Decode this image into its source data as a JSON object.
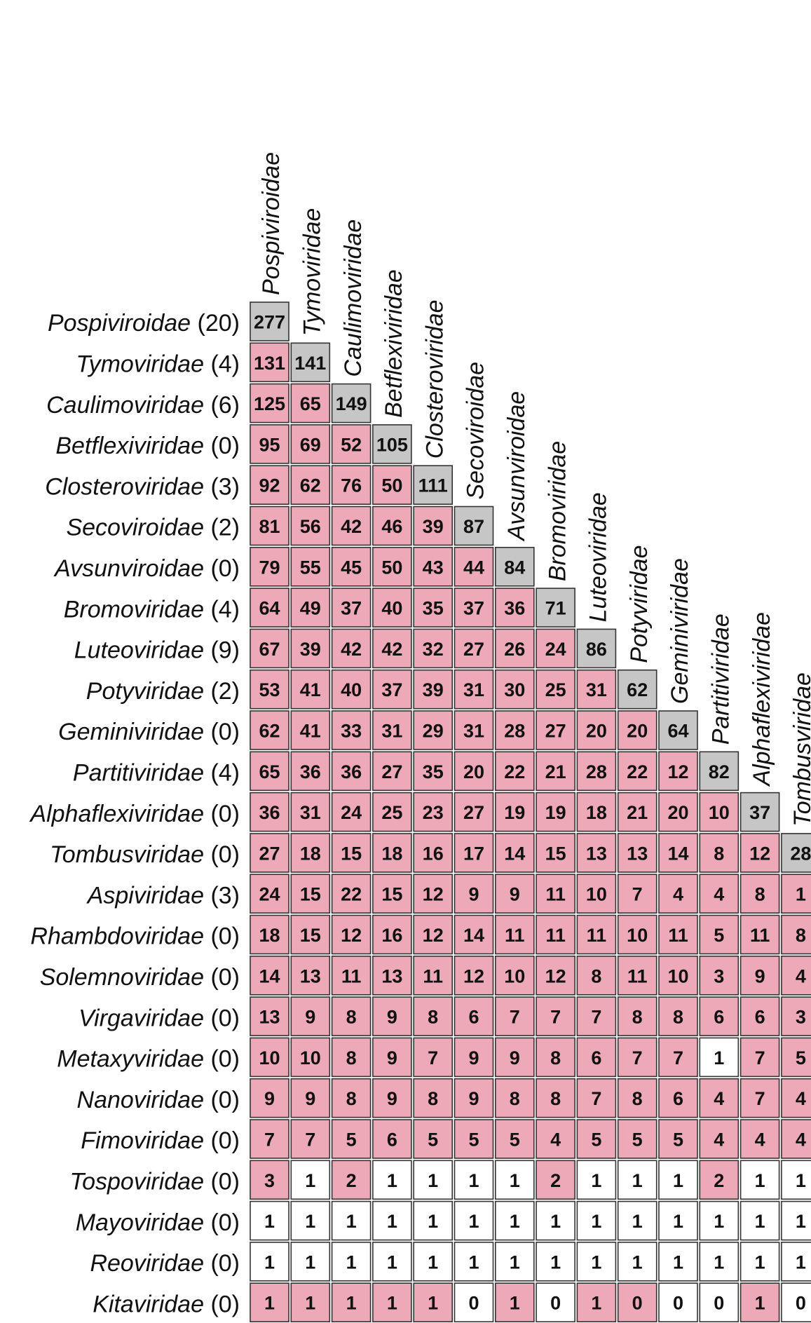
{
  "chart_data": {
    "type": "heatmap",
    "colors": {
      "diagonal": "#c6c6c6",
      "shared": "#eea9b8",
      "other": "#ffffff",
      "grid": "#333333"
    },
    "rows": [
      {
        "name": "Pospiviroidae",
        "count": "(20)",
        "values": [
          277
        ]
      },
      {
        "name": "Tymoviridae",
        "count": "(4)",
        "values": [
          131,
          141
        ]
      },
      {
        "name": "Caulimoviridae",
        "count": "(6)",
        "values": [
          125,
          65,
          149
        ]
      },
      {
        "name": "Betflexiviridae",
        "count": "(0)",
        "values": [
          95,
          69,
          52,
          105
        ]
      },
      {
        "name": "Closteroviridae",
        "count": "(3)",
        "values": [
          92,
          62,
          76,
          50,
          111
        ]
      },
      {
        "name": "Secoviroidae",
        "count": "(2)",
        "values": [
          81,
          56,
          42,
          46,
          39,
          87
        ]
      },
      {
        "name": "Avsunviroidae",
        "count": "(0)",
        "values": [
          79,
          55,
          45,
          50,
          43,
          44,
          84
        ]
      },
      {
        "name": "Bromoviridae",
        "count": "(4)",
        "values": [
          64,
          49,
          37,
          40,
          35,
          37,
          36,
          71
        ]
      },
      {
        "name": "Luteoviridae",
        "count": "(9)",
        "values": [
          67,
          39,
          42,
          42,
          32,
          27,
          26,
          24,
          86
        ]
      },
      {
        "name": "Potyviridae",
        "count": "(2)",
        "values": [
          53,
          41,
          40,
          37,
          39,
          31,
          30,
          25,
          31,
          62
        ]
      },
      {
        "name": "Geminiviridae",
        "count": "(0)",
        "values": [
          62,
          41,
          33,
          31,
          29,
          31,
          28,
          27,
          20,
          20,
          64
        ]
      },
      {
        "name": "Partitiviridae",
        "count": "(4)",
        "values": [
          65,
          36,
          36,
          27,
          35,
          20,
          22,
          21,
          28,
          22,
          12,
          82
        ]
      },
      {
        "name": "Alphaflexiviridae",
        "count": "(0)",
        "values": [
          36,
          31,
          24,
          25,
          23,
          27,
          19,
          19,
          18,
          21,
          20,
          10,
          37
        ]
      },
      {
        "name": "Tombusviridae",
        "count": "(0)",
        "values": [
          27,
          18,
          15,
          18,
          16,
          17,
          14,
          15,
          13,
          13,
          14,
          8,
          12,
          28
        ]
      },
      {
        "name": "Aspiviridae",
        "count": "(3)",
        "values": [
          24,
          15,
          22,
          15,
          12,
          9,
          9,
          11,
          10,
          7,
          4,
          4,
          8,
          1
        ]
      },
      {
        "name": "Rhambdoviridae",
        "count": "(0)",
        "values": [
          18,
          15,
          12,
          16,
          12,
          14,
          11,
          11,
          11,
          10,
          11,
          5,
          11,
          8
        ]
      },
      {
        "name": "Solemnoviridae",
        "count": "(0)",
        "values": [
          14,
          13,
          11,
          13,
          11,
          12,
          10,
          12,
          8,
          11,
          10,
          3,
          9,
          4
        ]
      },
      {
        "name": "Virgaviridae",
        "count": "(0)",
        "values": [
          13,
          9,
          8,
          9,
          8,
          6,
          7,
          7,
          7,
          8,
          8,
          6,
          6,
          3
        ]
      },
      {
        "name": "Metaxyviridae",
        "count": "(0)",
        "values": [
          10,
          10,
          8,
          9,
          7,
          9,
          9,
          8,
          6,
          7,
          7,
          1,
          7,
          5
        ]
      },
      {
        "name": "Nanoviridae",
        "count": "(0)",
        "values": [
          9,
          9,
          8,
          9,
          8,
          9,
          8,
          8,
          7,
          8,
          6,
          4,
          7,
          4
        ]
      },
      {
        "name": "Fimoviridae",
        "count": "(0)",
        "values": [
          7,
          7,
          5,
          6,
          5,
          5,
          5,
          4,
          5,
          5,
          5,
          4,
          4,
          4
        ]
      },
      {
        "name": "Tospoviridae",
        "count": "(0)",
        "values": [
          3,
          1,
          2,
          1,
          1,
          1,
          1,
          2,
          1,
          1,
          1,
          2,
          1,
          1
        ]
      },
      {
        "name": "Mayoviridae",
        "count": "(0)",
        "values": [
          1,
          1,
          1,
          1,
          1,
          1,
          1,
          1,
          1,
          1,
          1,
          1,
          1,
          1
        ]
      },
      {
        "name": "Reoviridae",
        "count": "(0)",
        "values": [
          1,
          1,
          1,
          1,
          1,
          1,
          1,
          1,
          1,
          1,
          1,
          1,
          1,
          1
        ]
      },
      {
        "name": "Kitaviridae",
        "count": "(0)",
        "values": [
          1,
          1,
          1,
          1,
          1,
          0,
          1,
          0,
          1,
          0,
          0,
          0,
          1,
          0
        ]
      }
    ],
    "columns": [
      "Pospiviroidae",
      "Tymoviridae",
      "Caulimoviridae",
      "Betflexiviridae",
      "Closteroviridae",
      "Secoviroidae",
      "Avsunviroidae",
      "Bromoviridae",
      "Luteoviridae",
      "Potyviridae",
      "Geminiviridae",
      "Partitiviridae",
      "Alphaflexiviridae",
      "Tombusviridae"
    ],
    "shared_cells": [
      [],
      [
        0
      ],
      [
        0,
        1
      ],
      [
        0,
        1,
        2
      ],
      [
        0,
        1,
        2,
        3
      ],
      [
        0,
        1,
        2,
        3,
        4
      ],
      [
        0,
        1,
        2,
        3,
        4,
        5
      ],
      [
        0,
        1,
        2,
        3,
        4,
        5,
        6
      ],
      [
        0,
        1,
        2,
        3,
        4,
        5,
        6,
        7
      ],
      [
        0,
        1,
        2,
        3,
        4,
        5,
        6,
        7,
        8
      ],
      [
        0,
        1,
        2,
        3,
        4,
        5,
        6,
        7,
        8,
        9
      ],
      [
        0,
        1,
        2,
        3,
        4,
        5,
        6,
        7,
        8,
        9,
        10
      ],
      [
        0,
        1,
        2,
        3,
        4,
        5,
        6,
        7,
        8,
        9,
        10,
        11
      ],
      [
        0,
        1,
        2,
        3,
        4,
        5,
        6,
        7,
        8,
        9,
        10,
        11,
        12
      ],
      [
        0,
        1,
        2,
        3,
        4,
        5,
        6,
        7,
        8,
        9,
        10,
        11,
        12,
        13
      ],
      [
        0,
        1,
        2,
        3,
        4,
        5,
        6,
        7,
        8,
        9,
        10,
        11,
        12,
        13
      ],
      [
        0,
        1,
        2,
        3,
        4,
        5,
        6,
        7,
        8,
        9,
        10,
        11,
        12,
        13
      ],
      [
        0,
        1,
        2,
        3,
        4,
        5,
        6,
        7,
        8,
        9,
        10,
        11,
        12,
        13
      ],
      [
        0,
        1,
        2,
        3,
        4,
        5,
        6,
        7,
        8,
        9,
        10,
        12,
        13
      ],
      [
        0,
        1,
        2,
        3,
        4,
        5,
        6,
        7,
        8,
        9,
        10,
        11,
        12,
        13
      ],
      [
        0,
        1,
        2,
        3,
        4,
        5,
        6,
        7,
        8,
        9,
        10,
        11,
        12,
        13
      ],
      [
        0,
        2,
        7,
        11
      ],
      [],
      [],
      [
        0,
        1,
        2,
        3,
        4,
        6,
        8,
        9,
        12
      ]
    ]
  }
}
